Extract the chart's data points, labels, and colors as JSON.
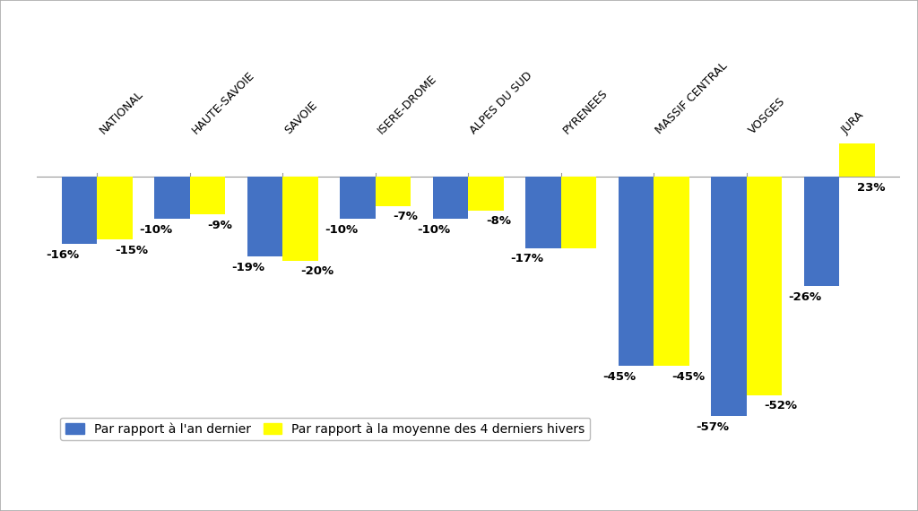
{
  "categories": [
    "NATIONAL",
    "HAUTE-SAVOIE",
    "SAVOIE",
    "ISERE-DROME",
    "ALPES DU SUD",
    "PYRENEES",
    "MASSIF CENTRAL",
    "VOSGES",
    "JURA"
  ],
  "series1_label": "Par rapport à l'an dernier",
  "series2_label": "Par rapport à la moyenne des 4 derniers hivers",
  "s1_vals": [
    -16,
    -10,
    -19,
    -10,
    -10,
    -17,
    -45,
    -57,
    -26
  ],
  "s2_vals": [
    -15,
    -9,
    -20,
    -7,
    -8,
    -17,
    -45,
    -52,
    23
  ],
  "s1_label_texts": [
    "-16%",
    "-10%",
    "-19%",
    "-10%",
    "-10%",
    "-17%",
    "-45%",
    "-57%",
    "-26%"
  ],
  "s2_label_texts": [
    "-15%",
    "-9%",
    "-20%",
    "-7%",
    "-8%",
    "",
    "-45%",
    "-52%",
    "23%"
  ],
  "bar_color1": "#4472C4",
  "bar_color2": "#FFFF00",
  "background_color": "#FFFFFF",
  "ylim": [
    -65,
    8
  ],
  "bar_width": 0.38,
  "label_fontsize": 9.5,
  "tick_label_fontsize": 9,
  "legend_fontsize": 10
}
